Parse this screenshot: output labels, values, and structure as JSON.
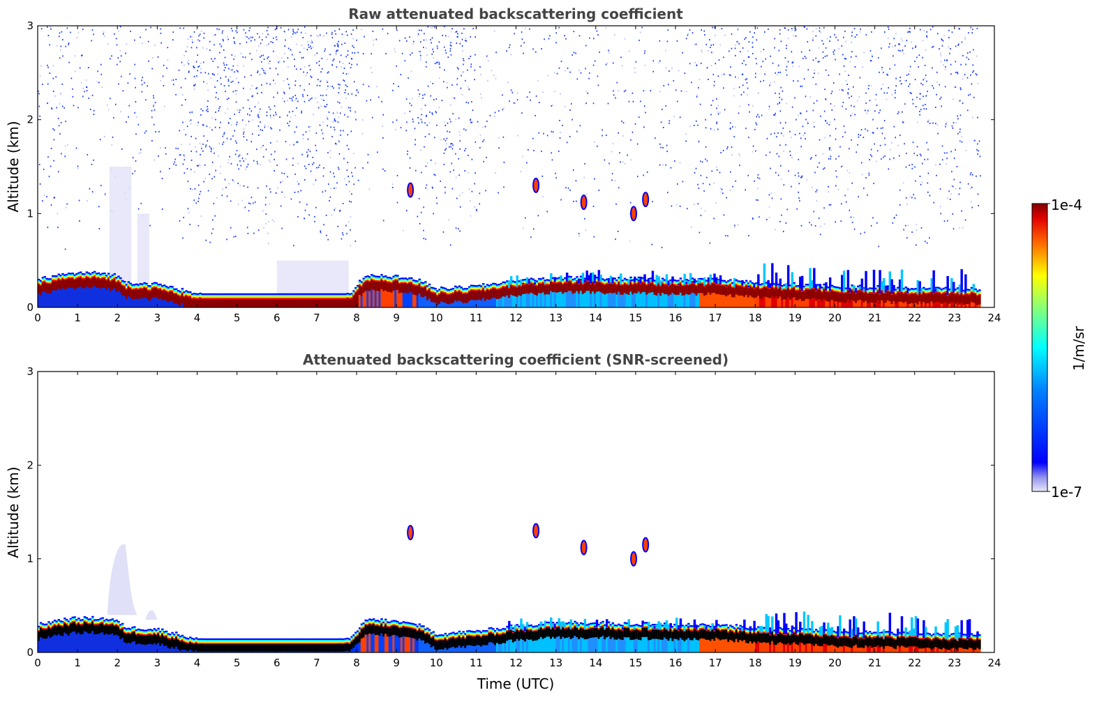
{
  "chart_data": [
    {
      "type": "heatmap",
      "title": "Raw attenuated backscattering coefficient",
      "xlabel": "",
      "ylabel": "Altitude (km)",
      "xlim": [
        0,
        24
      ],
      "ylim": [
        0,
        3
      ],
      "xticks": [
        "0",
        "1",
        "2",
        "3",
        "4",
        "5",
        "6",
        "7",
        "8",
        "9",
        "10",
        "11",
        "12",
        "13",
        "14",
        "15",
        "16",
        "17",
        "18",
        "19",
        "20",
        "21",
        "22",
        "23",
        "24"
      ],
      "yticks": [
        "0",
        "1",
        "2",
        "3"
      ],
      "data_end_time": 23.65,
      "layer_top_km": [
        [
          0,
          0.25
        ],
        [
          0.5,
          0.3
        ],
        [
          1.0,
          0.32
        ],
        [
          1.5,
          0.32
        ],
        [
          1.9,
          0.3
        ],
        [
          2.2,
          0.22
        ],
        [
          3.0,
          0.2
        ],
        [
          3.5,
          0.15
        ],
        [
          4.0,
          0.1
        ],
        [
          5.0,
          0.08
        ],
        [
          6.0,
          0.08
        ],
        [
          7.0,
          0.08
        ],
        [
          7.8,
          0.1
        ],
        [
          8.2,
          0.3
        ],
        [
          8.6,
          0.3
        ],
        [
          9.0,
          0.28
        ],
        [
          9.5,
          0.25
        ],
        [
          10.0,
          0.15
        ],
        [
          11.0,
          0.18
        ],
        [
          12.0,
          0.24
        ],
        [
          13.0,
          0.27
        ],
        [
          14.0,
          0.27
        ],
        [
          15.0,
          0.26
        ],
        [
          16.0,
          0.25
        ],
        [
          16.6,
          0.25
        ],
        [
          17.0,
          0.25
        ],
        [
          18.0,
          0.22
        ],
        [
          19.0,
          0.2
        ],
        [
          20.0,
          0.18
        ],
        [
          21.0,
          0.17
        ],
        [
          22.0,
          0.16
        ],
        [
          23.0,
          0.15
        ],
        [
          23.65,
          0.15
        ]
      ],
      "elevated_layers_km": [
        {
          "time": 9.35,
          "altitude": 1.25
        },
        {
          "time": 12.5,
          "altitude": 1.3
        },
        {
          "time": 13.7,
          "altitude": 1.12
        },
        {
          "time": 14.95,
          "altitude": 1.0
        },
        {
          "time": 15.25,
          "altitude": 1.15
        }
      ]
    },
    {
      "type": "heatmap",
      "title": "Attenuated backscattering coefficient (SNR-screened)",
      "xlabel": "Time (UTC)",
      "ylabel": "Altitude (km)",
      "xlim": [
        0,
        24
      ],
      "ylim": [
        0,
        3
      ],
      "xticks": [
        "0",
        "1",
        "2",
        "3",
        "4",
        "5",
        "6",
        "7",
        "8",
        "9",
        "10",
        "11",
        "12",
        "13",
        "14",
        "15",
        "16",
        "17",
        "18",
        "19",
        "20",
        "21",
        "22",
        "23",
        "24"
      ],
      "yticks": [
        "0",
        "1",
        "2",
        "3"
      ],
      "data_end_time": 23.65,
      "elevated_layers_km": [
        {
          "time": 9.35,
          "altitude": 1.28
        },
        {
          "time": 12.5,
          "altitude": 1.3
        },
        {
          "time": 13.7,
          "altitude": 1.12
        },
        {
          "time": 14.95,
          "altitude": 1.0
        },
        {
          "time": 15.25,
          "altitude": 1.15
        }
      ]
    }
  ],
  "colorbar": {
    "label": "1/m/sr",
    "max_label": "1e-4",
    "min_label": "1e-7",
    "colormap": "jet",
    "scale": "log",
    "range": [
      1e-07,
      0.0001
    ]
  },
  "colors": {
    "title_text": "#444444",
    "low": "#e6e6fa",
    "blue": "#0000ff",
    "cyan": "#00ffff",
    "yellow": "#ffff00",
    "red": "#ff0000",
    "dark_red": "#800000"
  }
}
